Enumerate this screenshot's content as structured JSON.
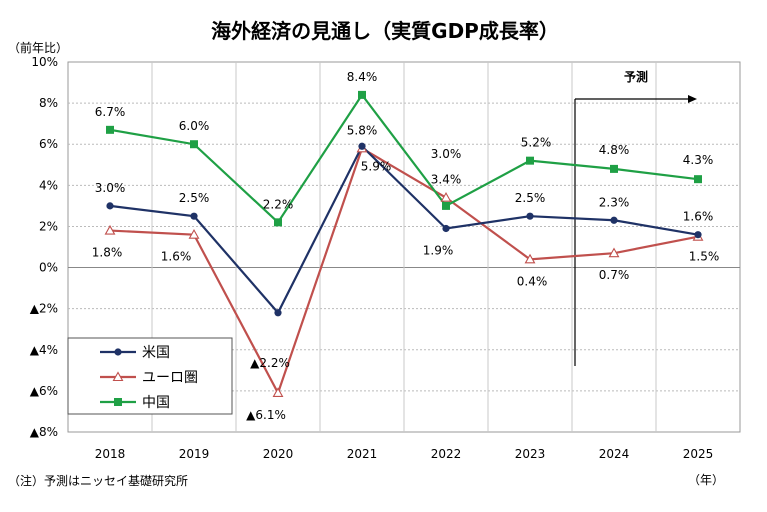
{
  "chart_data": {
    "type": "line",
    "title": "海外経済の見通し（実質GDP成長率）",
    "ylabel": "（前年比）",
    "xlabel": "（年）",
    "note": "（注）予測はニッセイ基礎研究所",
    "forecast_label": "予測",
    "categories": [
      "2018",
      "2019",
      "2020",
      "2021",
      "2022",
      "2023",
      "2024",
      "2025"
    ],
    "y_ticks": [
      {
        "value": 10,
        "label": "10%"
      },
      {
        "value": 8,
        "label": "8%"
      },
      {
        "value": 6,
        "label": "6%"
      },
      {
        "value": 4,
        "label": "4%"
      },
      {
        "value": 2,
        "label": "2%"
      },
      {
        "value": 0,
        "label": "0%"
      },
      {
        "value": -2,
        "label": "▲2%"
      },
      {
        "value": -4,
        "label": "▲4%"
      },
      {
        "value": -6,
        "label": "▲6%"
      },
      {
        "value": -8,
        "label": "▲8%"
      }
    ],
    "ylim": [
      -8,
      10
    ],
    "grid": true,
    "legend_position": "bottom-left",
    "series": [
      {
        "name": "米国",
        "color": "#1f3266",
        "marker": "circle",
        "values": [
          3.0,
          2.5,
          -2.2,
          5.9,
          1.9,
          2.5,
          2.3,
          1.6
        ],
        "labels": [
          "3.0%",
          "2.5%",
          "▲2.2%",
          "5.9%",
          "1.9%",
          "2.5%",
          "2.3%",
          "1.6%"
        ]
      },
      {
        "name": "ユーロ圏",
        "color": "#c0504d",
        "marker": "triangle",
        "values": [
          1.8,
          1.6,
          -6.1,
          5.8,
          3.4,
          0.4,
          0.7,
          1.5
        ],
        "labels": [
          "1.8%",
          "1.6%",
          "▲6.1%",
          "5.8%",
          "3.4%",
          "0.4%",
          "0.7%",
          "1.5%"
        ]
      },
      {
        "name": "中国",
        "color": "#1fa045",
        "marker": "square",
        "values": [
          6.7,
          6.0,
          2.2,
          8.4,
          3.0,
          5.2,
          4.8,
          4.3
        ],
        "labels": [
          "6.7%",
          "6.0%",
          "2.2%",
          "8.4%",
          "3.0%",
          "5.2%",
          "4.8%",
          "4.3%"
        ]
      }
    ]
  }
}
